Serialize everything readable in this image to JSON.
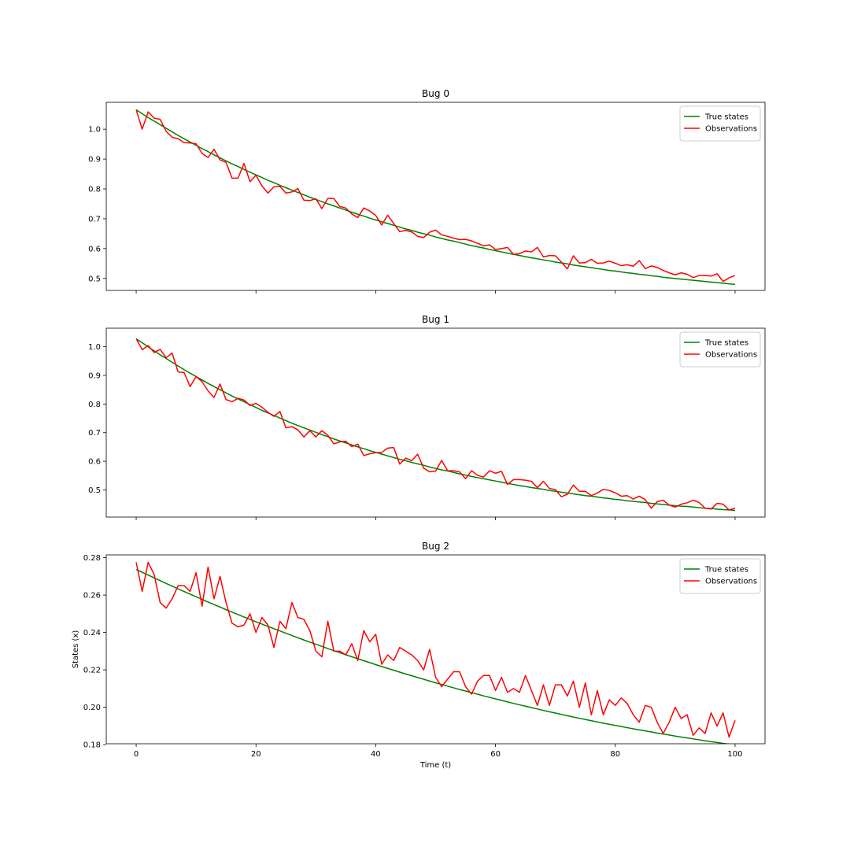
{
  "chart_data": [
    {
      "type": "line",
      "title": "Bug 0",
      "xlabel": "",
      "ylabel": "",
      "xlim": [
        -5,
        105
      ],
      "ylim": [
        0.46,
        1.09
      ],
      "xticks": [
        0,
        20,
        40,
        60,
        80,
        100
      ],
      "xtick_labels_visible": false,
      "yticks": [
        0.5,
        0.6,
        0.7,
        0.8,
        0.9,
        1.0
      ],
      "ytick_labels": [
        "0.5",
        "0.6",
        "0.7",
        "0.8",
        "0.9",
        "1.0"
      ],
      "legend_position": "top-right",
      "grid": false,
      "x": [
        0,
        1,
        2,
        3,
        4,
        5,
        6,
        7,
        8,
        9,
        10,
        11,
        12,
        13,
        14,
        15,
        16,
        17,
        18,
        19,
        20,
        21,
        22,
        23,
        24,
        25,
        26,
        27,
        28,
        29,
        30,
        31,
        32,
        33,
        34,
        35,
        36,
        37,
        38,
        39,
        40,
        41,
        42,
        43,
        44,
        45,
        46,
        47,
        48,
        49,
        50,
        51,
        52,
        53,
        54,
        55,
        56,
        57,
        58,
        59,
        60,
        61,
        62,
        63,
        64,
        65,
        66,
        67,
        68,
        69,
        70,
        71,
        72,
        73,
        74,
        75,
        76,
        77,
        78,
        79,
        80,
        81,
        82,
        83,
        84,
        85,
        86,
        87,
        88,
        89,
        90,
        91,
        92,
        93,
        94,
        95,
        96,
        97,
        98,
        99,
        100
      ],
      "series": [
        {
          "name": "True states",
          "color": "#008000",
          "values": [
            1.065,
            1.052,
            1.039,
            1.027,
            1.015,
            1.003,
            0.991,
            0.979,
            0.968,
            0.957,
            0.946,
            0.935,
            0.925,
            0.914,
            0.904,
            0.894,
            0.884,
            0.875,
            0.865,
            0.856,
            0.847,
            0.838,
            0.829,
            0.821,
            0.812,
            0.804,
            0.796,
            0.788,
            0.78,
            0.772,
            0.765,
            0.757,
            0.75,
            0.743,
            0.736,
            0.729,
            0.722,
            0.715,
            0.709,
            0.702,
            0.696,
            0.69,
            0.684,
            0.678,
            0.672,
            0.666,
            0.661,
            0.655,
            0.65,
            0.645,
            0.639,
            0.634,
            0.629,
            0.625,
            0.62,
            0.615,
            0.61,
            0.606,
            0.602,
            0.597,
            0.593,
            0.589,
            0.585,
            0.581,
            0.577,
            0.573,
            0.569,
            0.566,
            0.562,
            0.559,
            0.555,
            0.552,
            0.549,
            0.545,
            0.542,
            0.539,
            0.536,
            0.533,
            0.53,
            0.527,
            0.525,
            0.522,
            0.519,
            0.517,
            0.514,
            0.512,
            0.509,
            0.507,
            0.504,
            0.502,
            0.5,
            0.498,
            0.496,
            0.494,
            0.492,
            0.49,
            0.488,
            0.486,
            0.484,
            0.482,
            0.48
          ]
        },
        {
          "name": "Observations",
          "color": "#ff0000",
          "values": [
            1.065,
            1.0,
            1.058,
            1.037,
            1.033,
            0.993,
            0.973,
            0.968,
            0.955,
            0.954,
            0.951,
            0.919,
            0.905,
            0.933,
            0.897,
            0.889,
            0.836,
            0.836,
            0.885,
            0.824,
            0.846,
            0.81,
            0.786,
            0.807,
            0.809,
            0.786,
            0.79,
            0.801,
            0.762,
            0.761,
            0.767,
            0.734,
            0.768,
            0.768,
            0.741,
            0.736,
            0.716,
            0.704,
            0.736,
            0.726,
            0.711,
            0.679,
            0.712,
            0.684,
            0.657,
            0.661,
            0.656,
            0.641,
            0.637,
            0.655,
            0.662,
            0.646,
            0.641,
            0.635,
            0.63,
            0.631,
            0.626,
            0.618,
            0.609,
            0.613,
            0.597,
            0.6,
            0.604,
            0.581,
            0.583,
            0.592,
            0.589,
            0.604,
            0.572,
            0.577,
            0.576,
            0.555,
            0.532,
            0.576,
            0.552,
            0.553,
            0.564,
            0.551,
            0.552,
            0.558,
            0.551,
            0.543,
            0.546,
            0.541,
            0.56,
            0.533,
            0.542,
            0.537,
            0.527,
            0.519,
            0.512,
            0.519,
            0.514,
            0.503,
            0.51,
            0.51,
            0.508,
            0.516,
            0.49,
            0.502,
            0.51
          ]
        }
      ]
    },
    {
      "type": "line",
      "title": "Bug 1",
      "xlabel": "",
      "ylabel": "",
      "xlim": [
        -5,
        105
      ],
      "ylim": [
        0.405,
        1.065
      ],
      "xticks": [
        0,
        20,
        40,
        60,
        80,
        100
      ],
      "xtick_labels_visible": false,
      "yticks": [
        0.5,
        0.6,
        0.7,
        0.8,
        0.9,
        1.0
      ],
      "ytick_labels": [
        "0.5",
        "0.6",
        "0.7",
        "0.8",
        "0.9",
        "1.0"
      ],
      "legend_position": "top-right",
      "grid": false,
      "x": [
        0,
        1,
        2,
        3,
        4,
        5,
        6,
        7,
        8,
        9,
        10,
        11,
        12,
        13,
        14,
        15,
        16,
        17,
        18,
        19,
        20,
        21,
        22,
        23,
        24,
        25,
        26,
        27,
        28,
        29,
        30,
        31,
        32,
        33,
        34,
        35,
        36,
        37,
        38,
        39,
        40,
        41,
        42,
        43,
        44,
        45,
        46,
        47,
        48,
        49,
        50,
        51,
        52,
        53,
        54,
        55,
        56,
        57,
        58,
        59,
        60,
        61,
        62,
        63,
        64,
        65,
        66,
        67,
        68,
        69,
        70,
        71,
        72,
        73,
        74,
        75,
        76,
        77,
        78,
        79,
        80,
        81,
        82,
        83,
        84,
        85,
        86,
        87,
        88,
        89,
        90,
        91,
        92,
        93,
        94,
        95,
        96,
        97,
        98,
        99,
        100
      ],
      "series": [
        {
          "name": "True states",
          "color": "#008000",
          "values": [
            1.028,
            1.014,
            1.0,
            0.986,
            0.972,
            0.959,
            0.946,
            0.933,
            0.92,
            0.908,
            0.896,
            0.884,
            0.872,
            0.861,
            0.85,
            0.839,
            0.828,
            0.818,
            0.808,
            0.798,
            0.788,
            0.778,
            0.769,
            0.76,
            0.751,
            0.742,
            0.733,
            0.725,
            0.717,
            0.709,
            0.701,
            0.693,
            0.686,
            0.678,
            0.671,
            0.664,
            0.657,
            0.65,
            0.644,
            0.637,
            0.631,
            0.625,
            0.619,
            0.613,
            0.607,
            0.602,
            0.596,
            0.591,
            0.586,
            0.58,
            0.575,
            0.57,
            0.566,
            0.561,
            0.556,
            0.552,
            0.547,
            0.543,
            0.539,
            0.535,
            0.531,
            0.527,
            0.523,
            0.519,
            0.515,
            0.512,
            0.508,
            0.505,
            0.502,
            0.498,
            0.495,
            0.492,
            0.489,
            0.486,
            0.483,
            0.48,
            0.478,
            0.475,
            0.472,
            0.47,
            0.467,
            0.465,
            0.462,
            0.46,
            0.458,
            0.456,
            0.453,
            0.451,
            0.449,
            0.447,
            0.445,
            0.443,
            0.442,
            0.44,
            0.438,
            0.436,
            0.435,
            0.433,
            0.431,
            0.43,
            0.428
          ]
        },
        {
          "name": "Observations",
          "color": "#ff0000",
          "values": [
            1.028,
            0.99,
            1.004,
            0.98,
            0.991,
            0.962,
            0.978,
            0.912,
            0.91,
            0.861,
            0.896,
            0.878,
            0.846,
            0.823,
            0.87,
            0.816,
            0.808,
            0.82,
            0.814,
            0.795,
            0.802,
            0.789,
            0.771,
            0.757,
            0.774,
            0.717,
            0.721,
            0.71,
            0.685,
            0.707,
            0.685,
            0.707,
            0.691,
            0.661,
            0.668,
            0.67,
            0.651,
            0.66,
            0.62,
            0.626,
            0.63,
            0.631,
            0.646,
            0.648,
            0.59,
            0.611,
            0.602,
            0.625,
            0.576,
            0.563,
            0.566,
            0.603,
            0.567,
            0.567,
            0.563,
            0.539,
            0.567,
            0.551,
            0.545,
            0.567,
            0.558,
            0.565,
            0.519,
            0.536,
            0.536,
            0.534,
            0.53,
            0.508,
            0.53,
            0.505,
            0.501,
            0.476,
            0.485,
            0.517,
            0.495,
            0.495,
            0.48,
            0.489,
            0.502,
            0.498,
            0.49,
            0.478,
            0.48,
            0.468,
            0.478,
            0.466,
            0.436,
            0.459,
            0.464,
            0.447,
            0.44,
            0.45,
            0.455,
            0.464,
            0.456,
            0.436,
            0.433,
            0.453,
            0.45,
            0.43,
            0.436
          ]
        }
      ]
    },
    {
      "type": "line",
      "title": "Bug 2",
      "xlabel": "Time (t)",
      "ylabel": "States (x)",
      "xlim": [
        -5,
        105
      ],
      "ylim": [
        0.1805,
        0.2815
      ],
      "xticks": [
        0,
        20,
        40,
        60,
        80,
        100
      ],
      "xtick_labels": [
        "0",
        "20",
        "40",
        "60",
        "80",
        "100"
      ],
      "yticks": [
        0.18,
        0.2,
        0.22,
        0.24,
        0.26,
        0.28
      ],
      "ytick_labels": [
        "0.18",
        "0.20",
        "0.22",
        "0.24",
        "0.26",
        "0.28"
      ],
      "legend_position": "top-right",
      "grid": false,
      "x": [
        0,
        1,
        2,
        3,
        4,
        5,
        6,
        7,
        8,
        9,
        10,
        11,
        12,
        13,
        14,
        15,
        16,
        17,
        18,
        19,
        20,
        21,
        22,
        23,
        24,
        25,
        26,
        27,
        28,
        29,
        30,
        31,
        32,
        33,
        34,
        35,
        36,
        37,
        38,
        39,
        40,
        41,
        42,
        43,
        44,
        45,
        46,
        47,
        48,
        49,
        50,
        51,
        52,
        53,
        54,
        55,
        56,
        57,
        58,
        59,
        60,
        61,
        62,
        63,
        64,
        65,
        66,
        67,
        68,
        69,
        70,
        71,
        72,
        73,
        74,
        75,
        76,
        77,
        78,
        79,
        80,
        81,
        82,
        83,
        84,
        85,
        86,
        87,
        88,
        89,
        90,
        91,
        92,
        93,
        94,
        95,
        96,
        97,
        98,
        99,
        100
      ],
      "series": [
        {
          "name": "True states",
          "color": "#008000",
          "values": [
            0.2737,
            0.2722,
            0.2707,
            0.2692,
            0.2677,
            0.2662,
            0.2648,
            0.2633,
            0.2619,
            0.2605,
            0.2591,
            0.2577,
            0.2563,
            0.2549,
            0.2536,
            0.2522,
            0.2509,
            0.2496,
            0.2483,
            0.247,
            0.2457,
            0.2445,
            0.2432,
            0.242,
            0.2408,
            0.2396,
            0.2384,
            0.2372,
            0.236,
            0.2348,
            0.2337,
            0.2326,
            0.2314,
            0.2303,
            0.2292,
            0.2281,
            0.227,
            0.226,
            0.2249,
            0.2239,
            0.2228,
            0.2218,
            0.2208,
            0.2198,
            0.2188,
            0.2178,
            0.2169,
            0.2159,
            0.215,
            0.214,
            0.2131,
            0.2122,
            0.2113,
            0.2104,
            0.2095,
            0.2087,
            0.2078,
            0.207,
            0.2061,
            0.2053,
            0.2045,
            0.2037,
            0.2029,
            0.2021,
            0.2013,
            0.2006,
            0.1998,
            0.1991,
            0.1983,
            0.1976,
            0.1969,
            0.1962,
            0.1955,
            0.1948,
            0.1941,
            0.1935,
            0.1928,
            0.1922,
            0.1915,
            0.1909,
            0.1903,
            0.1897,
            0.1891,
            0.1885,
            0.1879,
            0.1874,
            0.1868,
            0.1862,
            0.1857,
            0.1852,
            0.1846,
            0.1841,
            0.1836,
            0.1831,
            0.1826,
            0.1821,
            0.1816,
            0.1812,
            0.1807,
            0.1803,
            0.1798
          ]
        },
        {
          "name": "Observations",
          "color": "#ff0000",
          "values": [
            0.2775,
            0.262,
            0.2775,
            0.271,
            0.256,
            0.253,
            0.258,
            0.265,
            0.265,
            0.262,
            0.272,
            0.254,
            0.275,
            0.258,
            0.27,
            0.256,
            0.245,
            0.243,
            0.244,
            0.25,
            0.24,
            0.248,
            0.244,
            0.232,
            0.246,
            0.242,
            0.256,
            0.248,
            0.247,
            0.241,
            0.23,
            0.227,
            0.246,
            0.23,
            0.23,
            0.228,
            0.234,
            0.225,
            0.241,
            0.235,
            0.239,
            0.223,
            0.228,
            0.225,
            0.232,
            0.23,
            0.228,
            0.225,
            0.22,
            0.231,
            0.216,
            0.211,
            0.215,
            0.219,
            0.219,
            0.211,
            0.207,
            0.214,
            0.217,
            0.217,
            0.209,
            0.216,
            0.208,
            0.21,
            0.208,
            0.217,
            0.209,
            0.201,
            0.212,
            0.201,
            0.212,
            0.212,
            0.206,
            0.214,
            0.2,
            0.213,
            0.196,
            0.209,
            0.196,
            0.204,
            0.201,
            0.205,
            0.202,
            0.196,
            0.192,
            0.201,
            0.2,
            0.192,
            0.186,
            0.192,
            0.2,
            0.194,
            0.196,
            0.185,
            0.189,
            0.186,
            0.197,
            0.19,
            0.197,
            0.184,
            0.193
          ]
        }
      ]
    }
  ]
}
